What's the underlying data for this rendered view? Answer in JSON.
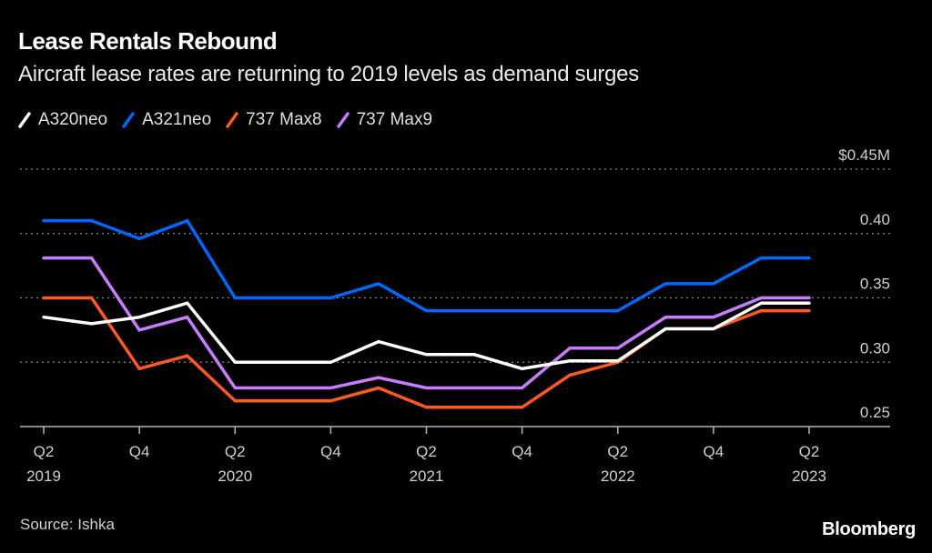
{
  "header": {
    "title": "Lease Rentals Rebound",
    "subtitle": "Aircraft lease rates are returning to 2019 levels as demand surges"
  },
  "footer": {
    "source": "Source: Ishka",
    "brand": "Bloomberg"
  },
  "chart_data": {
    "type": "line",
    "title": "Lease Rentals Rebound",
    "subtitle": "Aircraft lease rates are returning to 2019 levels as demand surges",
    "xlabel": "",
    "ylabel": "",
    "y_unit_label": "$0.45M",
    "ylim": [
      0.25,
      0.45
    ],
    "yticks": [
      {
        "value": 0.45,
        "label": "$0.45M"
      },
      {
        "value": 0.4,
        "label": "0.40"
      },
      {
        "value": 0.35,
        "label": "0.35"
      },
      {
        "value": 0.3,
        "label": "0.30"
      },
      {
        "value": 0.25,
        "label": "0.25"
      }
    ],
    "grid": true,
    "legend_position": "top-left",
    "x": [
      "Q2 2019",
      "Q3 2019",
      "Q4 2019",
      "Q1 2020",
      "Q2 2020",
      "Q3 2020",
      "Q4 2020",
      "Q1 2021",
      "Q2 2021",
      "Q3 2021",
      "Q4 2021",
      "Q1 2022",
      "Q2 2022",
      "Q3 2022",
      "Q4 2022",
      "Q1 2023",
      "Q2 2023"
    ],
    "xticks": [
      {
        "index": 0,
        "line1": "Q2",
        "line2": "2019"
      },
      {
        "index": 2,
        "line1": "Q4",
        "line2": ""
      },
      {
        "index": 4,
        "line1": "Q2",
        "line2": "2020"
      },
      {
        "index": 6,
        "line1": "Q4",
        "line2": ""
      },
      {
        "index": 8,
        "line1": "Q2",
        "line2": "2021"
      },
      {
        "index": 10,
        "line1": "Q4",
        "line2": ""
      },
      {
        "index": 12,
        "line1": "Q2",
        "line2": "2022"
      },
      {
        "index": 14,
        "line1": "Q4",
        "line2": ""
      },
      {
        "index": 16,
        "line1": "Q2",
        "line2": "2023"
      }
    ],
    "series": [
      {
        "name": "A320neo",
        "color": "#ffffff",
        "values": [
          0.335,
          0.33,
          0.335,
          0.346,
          0.3,
          0.3,
          0.3,
          0.316,
          0.306,
          0.306,
          0.295,
          0.301,
          0.301,
          0.326,
          0.326,
          0.346,
          0.346
        ]
      },
      {
        "name": "A321neo",
        "color": "#0068ff",
        "values": [
          0.41,
          0.41,
          0.396,
          0.41,
          0.35,
          0.35,
          0.35,
          0.361,
          0.34,
          0.34,
          0.34,
          0.34,
          0.34,
          0.361,
          0.361,
          0.381,
          0.381
        ]
      },
      {
        "name": "737 Max8",
        "color": "#ff5a1f",
        "values": [
          0.35,
          0.35,
          0.295,
          0.305,
          0.27,
          0.27,
          0.27,
          0.28,
          0.265,
          0.265,
          0.265,
          0.29,
          0.3,
          0.326,
          0.326,
          0.34,
          0.34
        ]
      },
      {
        "name": "737 Max9",
        "color": "#c87dff",
        "values": [
          0.381,
          0.381,
          0.325,
          0.335,
          0.28,
          0.28,
          0.28,
          0.288,
          0.28,
          0.28,
          0.28,
          0.311,
          0.311,
          0.335,
          0.335,
          0.35,
          0.35
        ]
      }
    ]
  }
}
